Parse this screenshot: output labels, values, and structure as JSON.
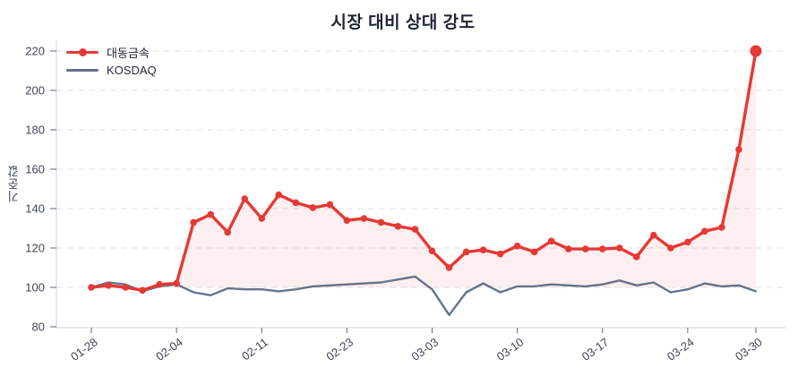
{
  "chart_data": {
    "type": "line",
    "title": "시장 대비 상대 강도",
    "ylabel": "기준값",
    "ylim": [
      80,
      220
    ],
    "y_ticks": [
      80,
      100,
      120,
      140,
      160,
      180,
      200,
      220
    ],
    "grid": "horizontal-dashed",
    "legend_position": "top-left",
    "x_count": 40,
    "x_tick_labels": [
      {
        "index": 0,
        "label": "01-28"
      },
      {
        "index": 5,
        "label": "02-04"
      },
      {
        "index": 10,
        "label": "02-11"
      },
      {
        "index": 15,
        "label": "02-23"
      },
      {
        "index": 20,
        "label": "03-03"
      },
      {
        "index": 25,
        "label": "03-10"
      },
      {
        "index": 30,
        "label": "03-17"
      },
      {
        "index": 35,
        "label": "03-24"
      },
      {
        "index": 39,
        "label": "03-30"
      }
    ],
    "series": [
      {
        "name": "대동금속",
        "color": "#e53935",
        "marker": "circle",
        "last_point_emphasized": true,
        "area_fill": "rgba(229,57,53,0.08)",
        "baseline": 100,
        "values": [
          100,
          101,
          100,
          98.5,
          101.5,
          102,
          133,
          137,
          128,
          145,
          135,
          147,
          143,
          140.5,
          142,
          134,
          135,
          133,
          131,
          129.5,
          118.5,
          110,
          118,
          119,
          117,
          121,
          118,
          123.5,
          119.5,
          119.5,
          119.5,
          120,
          115.5,
          126.5,
          120,
          123,
          128.5,
          130.5,
          170,
          220
        ]
      },
      {
        "name": "KOSDAQ",
        "color": "#64748b",
        "marker": "none",
        "values": [
          100,
          102.5,
          101.5,
          98,
          100.5,
          101.5,
          97.5,
          96,
          99.5,
          99,
          99,
          98,
          99,
          100.5,
          101,
          101.5,
          102,
          102.5,
          104,
          105.5,
          99,
          86,
          97.5,
          102,
          97.5,
          100.5,
          100.5,
          101.5,
          101,
          100.5,
          101.5,
          103.5,
          101,
          102.5,
          97.5,
          99,
          102,
          100.5,
          101,
          98
        ]
      }
    ]
  },
  "legend": {
    "items": [
      {
        "label": "대동금속",
        "color": "#e53935",
        "marker": "line-with-dot"
      },
      {
        "label": "KOSDAQ",
        "color": "#64748b",
        "marker": "line"
      }
    ]
  },
  "colors": {
    "series_red": "#e53935",
    "series_red_fill": "rgba(229,57,53,0.08)",
    "series_gray": "#64748b",
    "gridline": "#e1e3e6",
    "axis_line": "#ccd1d8",
    "tick_text": "#3d4657",
    "title_text": "#1d2433",
    "background": "#ffffff"
  }
}
